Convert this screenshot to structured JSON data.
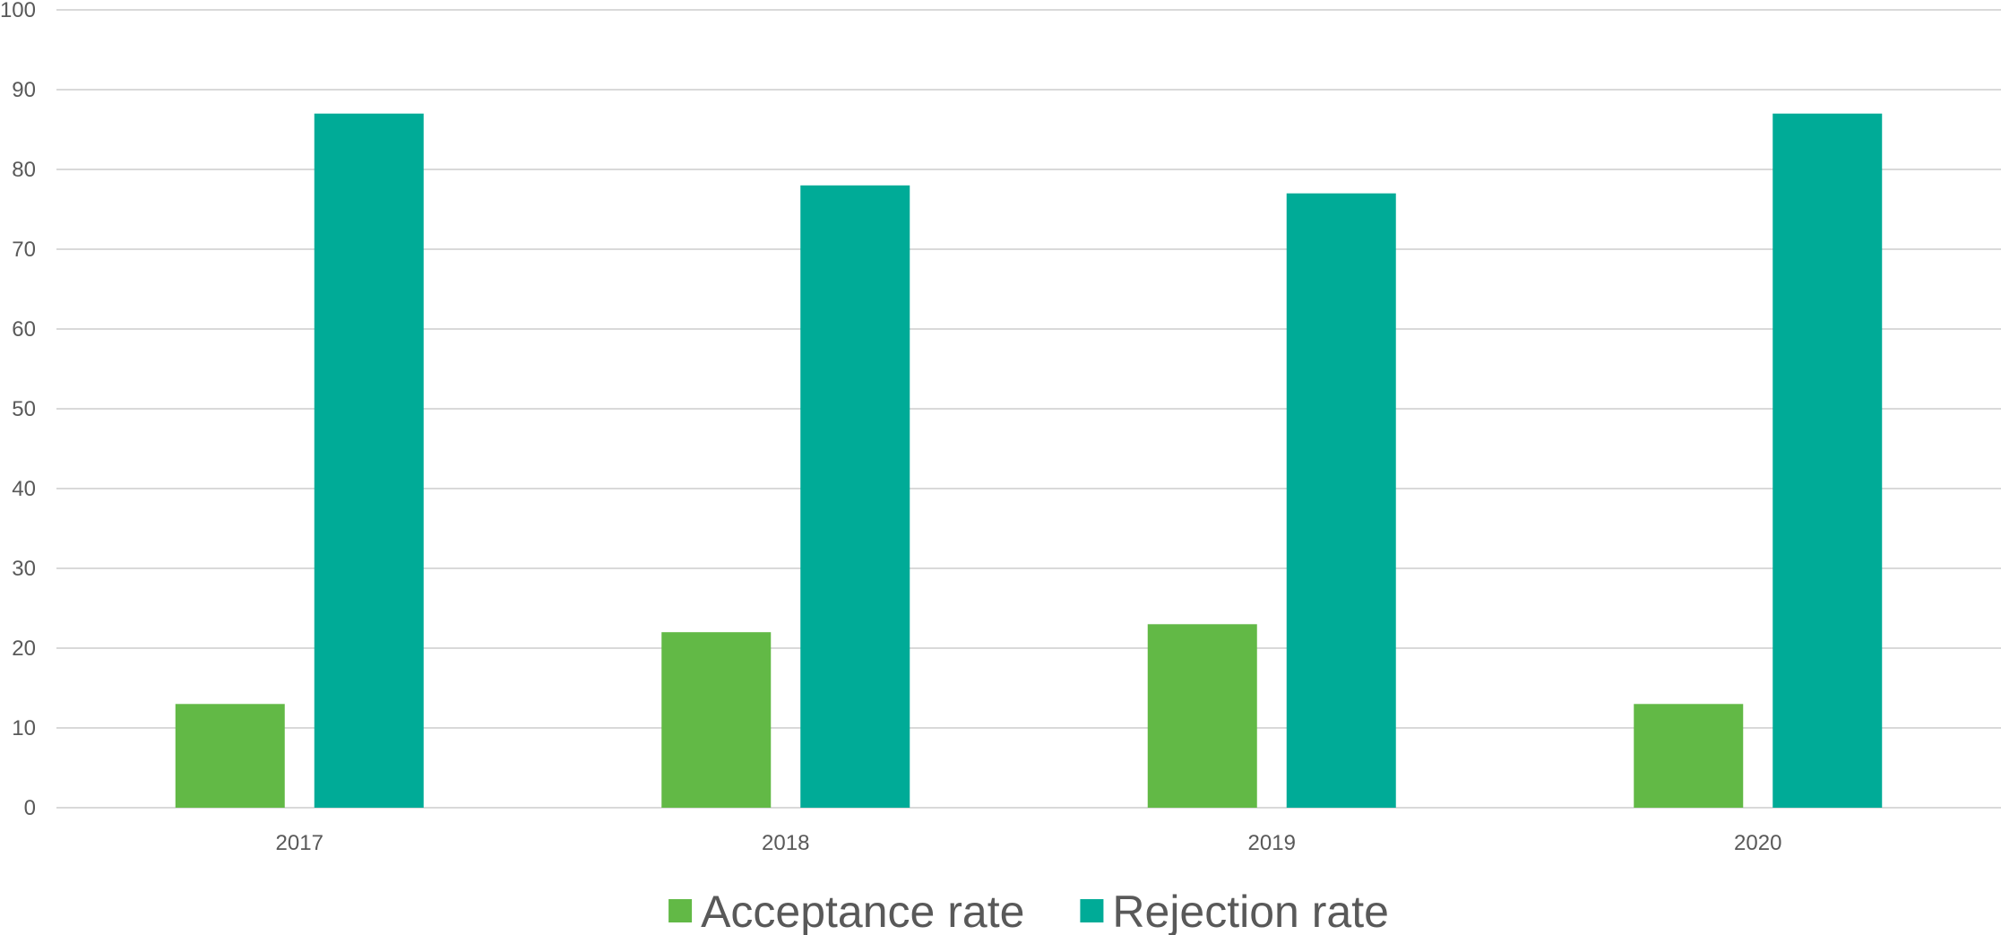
{
  "chart_data": {
    "type": "bar",
    "title": "",
    "xlabel": "",
    "ylabel": "",
    "categories": [
      "2017",
      "2018",
      "2019",
      "2020"
    ],
    "series": [
      {
        "name": "Acceptance rate",
        "values": [
          13,
          22,
          23,
          13
        ],
        "color": "#62b946"
      },
      {
        "name": "Rejection rate",
        "values": [
          87,
          78,
          77,
          87
        ],
        "color": "#00ab97"
      }
    ],
    "ylim": [
      0,
      100
    ],
    "yticks": [
      0,
      10,
      20,
      30,
      40,
      50,
      60,
      70,
      80,
      90,
      100
    ],
    "grid": true,
    "legend_position": "bottom"
  }
}
